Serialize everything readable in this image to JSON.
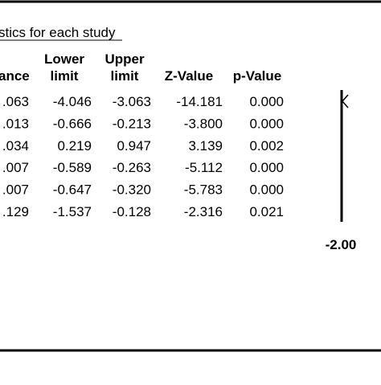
{
  "header": {
    "title": "stics for each study"
  },
  "table": {
    "columns": [
      [
        "ance"
      ],
      [
        "Lower",
        "limit"
      ],
      [
        "Upper",
        "limit"
      ],
      [
        "Z-Value"
      ],
      [
        "p-Value"
      ]
    ],
    "rows": [
      [
        ".063",
        "-4.046",
        "-3.063",
        "-14.181",
        "0.000"
      ],
      [
        ".013",
        "-0.666",
        "-0.213",
        "-3.800",
        "0.000"
      ],
      [
        ".034",
        "0.219",
        "0.947",
        "3.139",
        "0.002"
      ],
      [
        ".007",
        "-0.589",
        "-0.263",
        "-5.112",
        "0.000"
      ],
      [
        ".007",
        "-0.647",
        "-0.320",
        "-5.783",
        "0.000"
      ],
      [
        ".129",
        "-1.537",
        "-0.128",
        "-2.316",
        "0.021"
      ]
    ]
  },
  "plot": {
    "tick_label": "-2.00"
  }
}
